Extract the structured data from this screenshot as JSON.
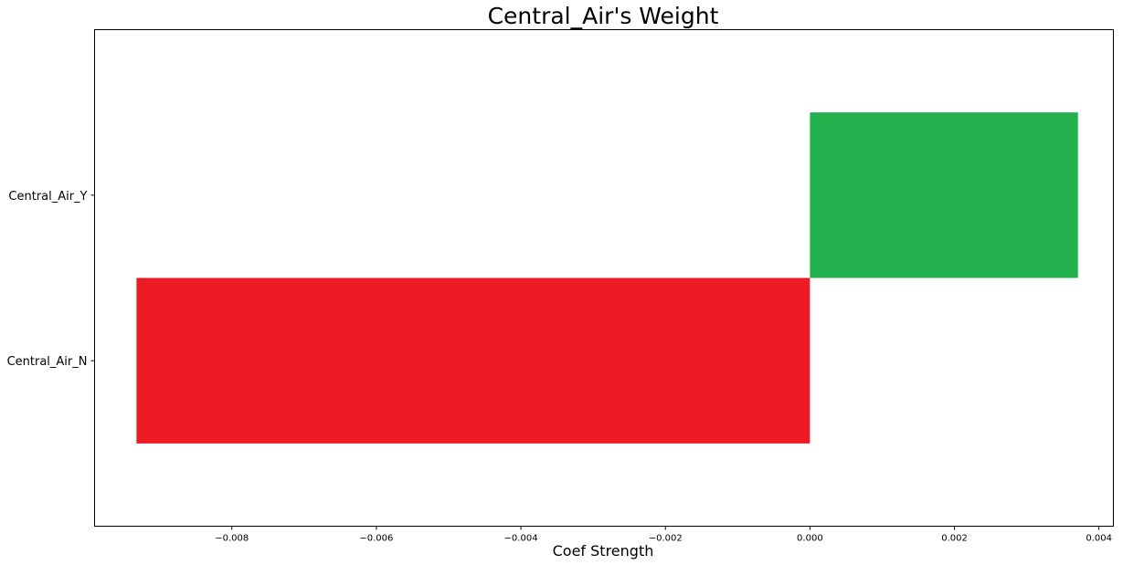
{
  "chart_data": {
    "type": "bar",
    "orientation": "horizontal",
    "title": "Central_Air's Weight",
    "xlabel": "Coef Strength",
    "ylabel": "",
    "xlim": [
      -0.0099,
      0.0042
    ],
    "xticks": [
      -0.008,
      -0.006,
      -0.004,
      -0.002,
      0.0,
      0.002,
      0.004
    ],
    "xtick_labels": [
      "−0.008",
      "−0.006",
      "−0.004",
      "−0.002",
      "0.000",
      "0.002",
      "0.004"
    ],
    "categories": [
      "Central_Air_N",
      "Central_Air_Y"
    ],
    "values": [
      -0.00932,
      0.00371
    ],
    "colors": [
      "#ed1c24",
      "#22b14c"
    ],
    "grid": false,
    "legend": "none"
  }
}
